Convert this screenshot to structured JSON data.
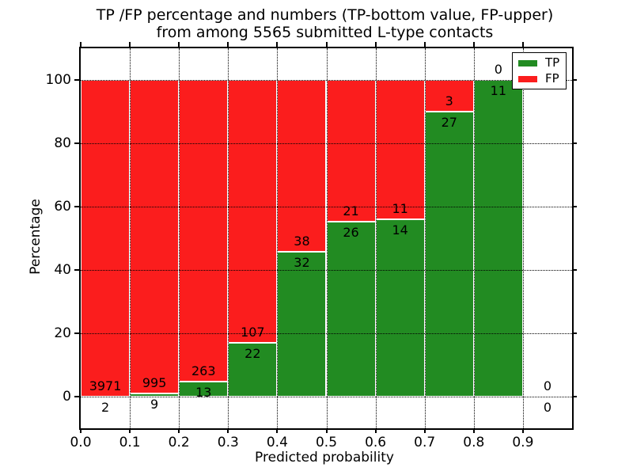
{
  "chart_data": {
    "type": "bar",
    "stacked": true,
    "title_line1": "TP /FP percentage and numbers (TP-bottom value, FP-upper)",
    "title_line2": "from among 5565 submitted L-type contacts",
    "xlabel": "Predicted probability",
    "ylabel": "Percentage",
    "xlim": [
      0.0,
      1.0
    ],
    "ylim": [
      -10,
      110
    ],
    "xtick_labels": [
      "0.0",
      "0.1",
      "0.2",
      "0.3",
      "0.4",
      "0.5",
      "0.6",
      "0.7",
      "0.8",
      "0.9"
    ],
    "ytick_values": [
      0,
      20,
      40,
      60,
      80,
      100
    ],
    "grid": "dotted, drawn above bars",
    "bar_bin_width": 0.1,
    "bins": [
      {
        "range": [
          0.0,
          0.1
        ],
        "tp": 2,
        "fp": 3971
      },
      {
        "range": [
          0.1,
          0.2
        ],
        "tp": 9,
        "fp": 995
      },
      {
        "range": [
          0.2,
          0.3
        ],
        "tp": 13,
        "fp": 263
      },
      {
        "range": [
          0.3,
          0.4
        ],
        "tp": 22,
        "fp": 107
      },
      {
        "range": [
          0.4,
          0.5
        ],
        "tp": 32,
        "fp": 38
      },
      {
        "range": [
          0.5,
          0.6
        ],
        "tp": 26,
        "fp": 21
      },
      {
        "range": [
          0.6,
          0.7
        ],
        "tp": 14,
        "fp": 11
      },
      {
        "range": [
          0.7,
          0.8
        ],
        "tp": 27,
        "fp": 3
      },
      {
        "range": [
          0.8,
          0.9
        ],
        "tp": 11,
        "fp": 0
      },
      {
        "range": [
          0.9,
          1.0
        ],
        "tp": 0,
        "fp": 0
      }
    ],
    "colors": {
      "tp": "#228b22",
      "fp": "#fb1d1d",
      "bar_edge": "#ffffff",
      "axes": "#000000"
    },
    "legend": {
      "position": "upper right",
      "entries": [
        {
          "label": "TP",
          "color": "#228b22"
        },
        {
          "label": "FP",
          "color": "#fb1d1d"
        }
      ]
    }
  }
}
